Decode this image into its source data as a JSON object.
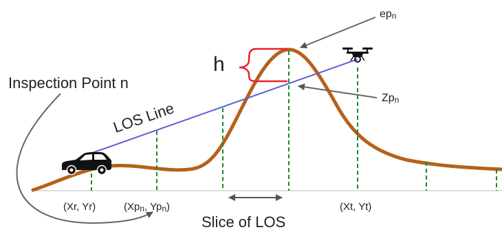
{
  "labels": {
    "ep": {
      "main": "ep",
      "sub": "n"
    },
    "h": "h",
    "inspection_point": "Inspection Point n",
    "los_line": "LOS Line",
    "zp": {
      "main": "Zp",
      "sub": "n"
    },
    "xr_yr": "(Xr, Yr)",
    "xp_yp": {
      "open": "(Xp",
      "sub1": "n",
      "mid": ", Yp",
      "sub2": "n",
      "close": ")"
    },
    "xt_yt": "(Xt, Yt)",
    "slice": "Slice of LOS"
  },
  "icons": {
    "vehicle": "car-icon",
    "drone": "drone-icon"
  },
  "colors": {
    "terrain": "#b5611b",
    "los_line": "#5b5fd6",
    "height_bracket": "#e8212b",
    "slice_marker": "#1b8a2a",
    "arrows": "#666666",
    "ground": "#bbbbbb"
  }
}
